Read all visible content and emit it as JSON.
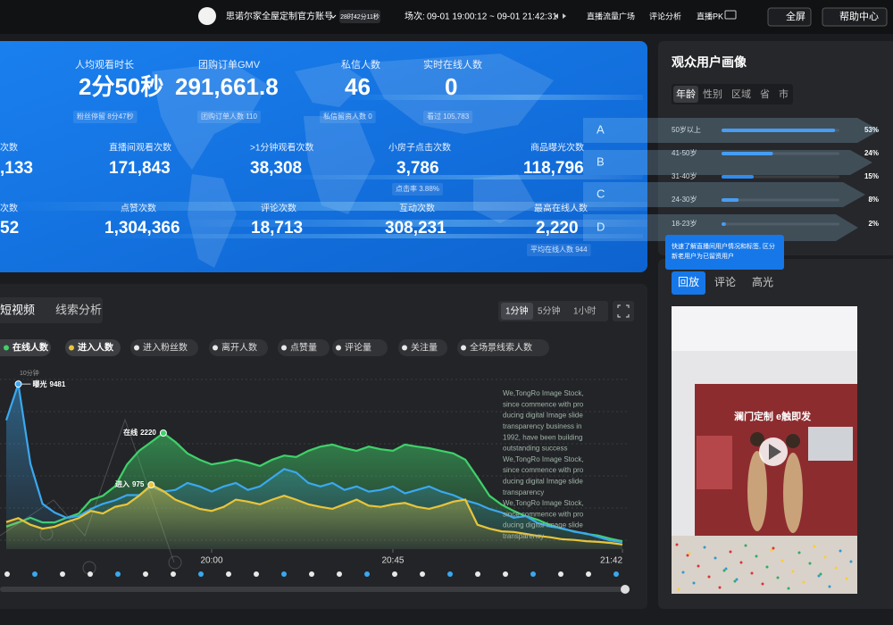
{
  "header": {
    "account": "思诺尔家全屋定制官方账号",
    "duration": "28时42分11秒",
    "session_label": "场次:",
    "session": "09-01 19:00:12 ~ 09-01 21:42:31",
    "nav": [
      "直播流量广场",
      "评论分析",
      "直播PK"
    ],
    "fullscreen": "全屏",
    "help": "帮助中心"
  },
  "metrics": [
    {
      "label": "人均观看时长",
      "value": "2分50秒",
      "sub": "粉丝停留 8分47秒"
    },
    {
      "label": "团购订单GMV",
      "value": "291,661.8",
      "sub": "团购订单人数 110"
    },
    {
      "label": "私信人数",
      "value": "46",
      "sub": "私信留资人数 0"
    },
    {
      "label": "实时在线人数",
      "value": "0",
      "sub": "看过 105,783"
    },
    {
      "label": "次数",
      "value": ",133"
    },
    {
      "label": "直播间观看次数",
      "value": "171,843"
    },
    {
      "label": ">1分钟观看次数",
      "value": "38,308"
    },
    {
      "label": "小房子点击次数",
      "value": "3,786",
      "sub": "点击率 3.88%"
    },
    {
      "label": "商品曝光次数",
      "value": "118,796"
    },
    {
      "label": "次数",
      "value": "52"
    },
    {
      "label": "点赞次数",
      "value": "1,304,366"
    },
    {
      "label": "评论次数",
      "value": "18,713"
    },
    {
      "label": "互动次数",
      "value": "308,231"
    },
    {
      "label": "最高在线人数",
      "value": "2,220",
      "sub": "平均在线人数 944"
    }
  ],
  "audience": {
    "title": "观众用户画像",
    "tabs": [
      "年龄",
      "性别",
      "区域",
      "省",
      "市"
    ],
    "overlay_letters": [
      "A",
      "B",
      "C",
      "D"
    ],
    "tooltip": [
      "快速了解直播间用户情况和标签, 区分",
      "新老用户为已留资用户"
    ],
    "chart_data": {
      "type": "bar",
      "categories": [
        "50岁以上",
        "41-50岁",
        "31-40岁",
        "24-30岁",
        "18-23岁"
      ],
      "values": [
        53,
        24,
        15,
        8,
        2
      ],
      "value_labels": [
        "53%",
        "24%",
        "15%",
        "8%",
        "2%"
      ],
      "xlim": [
        0,
        55
      ],
      "color": "#2f8cf0"
    }
  },
  "player": {
    "tabs": [
      "回放",
      "评论",
      "高光"
    ],
    "sign": "澜门定制 e触即发"
  },
  "trend": {
    "tabs": [
      "短视频",
      "线索分析"
    ],
    "intervals": [
      "1分钟",
      "5分钟",
      "1小时"
    ],
    "legend": [
      "在线人数",
      "进入人数",
      "进入粉丝数",
      "离开人数",
      "点赞量",
      "评论量",
      "关注量",
      "全场景线索人数"
    ],
    "unit": "10分钟",
    "watermark": [
      "We,TongRo Image Stock,",
      "since commence with pro",
      "ducing digital Image slide",
      "transparency business in",
      "1992, have been building",
      "outstanding success",
      "We,TongRo Image Stock,",
      "since commence with pro",
      "ducing digital Image slide",
      "transparency",
      "We,TongRo Image Stock,",
      "since commence with pro",
      "ducing digital Image slide",
      "transparency"
    ],
    "chart_data": {
      "type": "line",
      "categories": [
        null,
        null,
        null,
        null,
        null,
        null,
        null,
        null,
        null,
        null,
        null,
        null,
        null,
        null,
        null,
        null,
        null,
        "20:00",
        null,
        null,
        null,
        null,
        null,
        null,
        null,
        null,
        null,
        null,
        null,
        null,
        null,
        null,
        "20:45",
        null,
        null,
        null,
        null,
        null,
        null,
        null,
        null,
        null,
        null,
        null,
        null,
        null,
        null,
        null,
        null,
        null,
        null,
        "21:42"
      ],
      "series": [
        {
          "name": "在线",
          "color": "#3fd16a",
          "ylim": [
            0,
            3330
          ],
          "values": [
            430,
            510,
            600,
            510,
            510,
            600,
            680,
            940,
            1020,
            1200,
            1620,
            1880,
            2050,
            2220,
            2050,
            1830,
            1710,
            1620,
            1660,
            1710,
            1660,
            1590,
            1710,
            1790,
            1760,
            1880,
            1960,
            2000,
            1930,
            1880,
            1960,
            1910,
            1880,
            2000,
            1960,
            1930,
            1880,
            1830,
            1710,
            1370,
            1020,
            850,
            730,
            630,
            560,
            460,
            390,
            340,
            290,
            260,
            200,
            150
          ],
          "value_labels": [
            null,
            null,
            null,
            null,
            null,
            null,
            null,
            null,
            null,
            null,
            null,
            null,
            null,
            "2220",
            null,
            null,
            null,
            null,
            null,
            null,
            null,
            null,
            null,
            null,
            null,
            null,
            null,
            null,
            null,
            null,
            null,
            null,
            null,
            null,
            null,
            null,
            null,
            null,
            null,
            null,
            null,
            null,
            null,
            null,
            null,
            null,
            null,
            null,
            null,
            null,
            null,
            null
          ]
        },
        {
          "name": "曝光",
          "color": "#3aa8f0",
          "ylim": [
            0,
            10000
          ],
          "values": [
            7400,
            9481,
            4900,
            2600,
            2100,
            1800,
            1900,
            2300,
            2600,
            2800,
            3100,
            3100,
            3600,
            3300,
            3400,
            3800,
            3600,
            3300,
            3600,
            3800,
            3400,
            3600,
            4100,
            4600,
            4400,
            3800,
            3600,
            3800,
            3400,
            3600,
            3300,
            3400,
            3600,
            3200,
            3400,
            3600,
            3300,
            3100,
            2800,
            2600,
            2300,
            2100,
            1800,
            1900,
            1500,
            1300,
            1200,
            1000,
            900,
            700,
            500,
            400
          ],
          "value_labels": [
            null,
            "9481",
            null,
            null,
            null,
            null,
            null,
            null,
            null,
            null,
            null,
            null,
            null,
            null,
            null,
            null,
            null,
            null,
            null,
            null,
            null,
            null,
            null,
            null,
            null,
            null,
            null,
            null,
            null,
            null,
            null,
            null,
            null,
            null,
            null,
            null,
            null,
            null,
            null,
            null,
            null,
            null,
            null,
            null,
            null,
            null,
            null,
            null,
            null,
            null,
            null,
            null
          ]
        },
        {
          "name": "进入",
          "color": "#e8c53a",
          "ylim": [
            0,
            2640
          ],
          "values": [
            410,
            470,
            370,
            310,
            340,
            410,
            470,
            580,
            540,
            640,
            680,
            810,
            975,
            880,
            750,
            680,
            610,
            580,
            640,
            750,
            720,
            680,
            750,
            810,
            750,
            680,
            640,
            610,
            680,
            750,
            660,
            640,
            680,
            700,
            640,
            610,
            660,
            720,
            750,
            370,
            310,
            270,
            260,
            230,
            200,
            180,
            150,
            140,
            120,
            110,
            95,
            70
          ],
          "value_labels": [
            null,
            null,
            null,
            null,
            null,
            null,
            null,
            null,
            null,
            null,
            null,
            null,
            "975",
            null,
            null,
            null,
            null,
            null,
            null,
            null,
            null,
            null,
            null,
            null,
            null,
            null,
            null,
            null,
            null,
            null,
            null,
            null,
            null,
            null,
            null,
            null,
            null,
            null,
            null,
            null,
            null,
            null,
            null,
            null,
            null,
            null,
            null,
            null,
            null,
            null,
            null,
            null
          ]
        }
      ]
    }
  }
}
